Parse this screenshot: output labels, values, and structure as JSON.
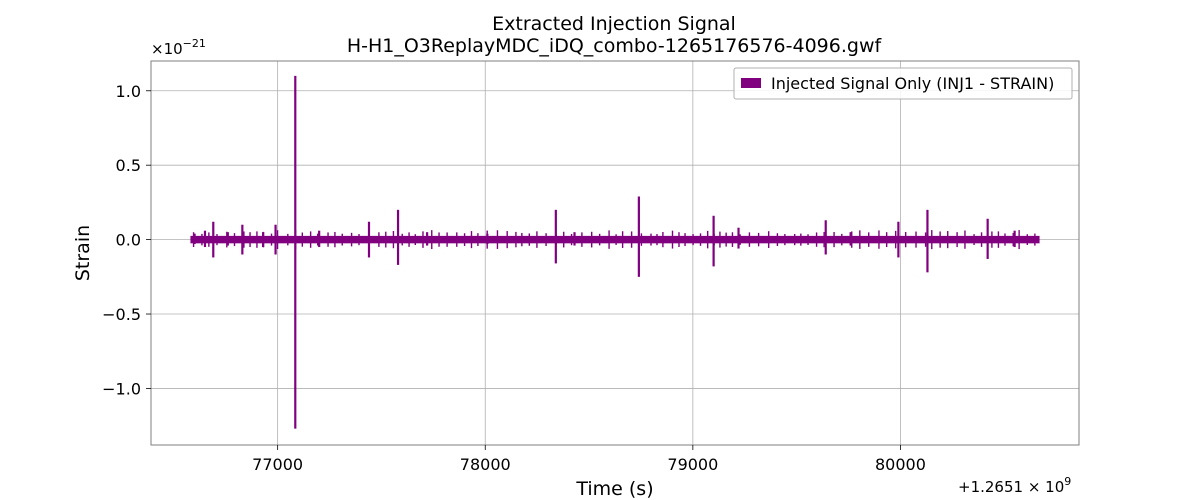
{
  "chart_data": {
    "type": "line",
    "title": "Extracted Injection Signal",
    "subtitle": "H-H1_O3ReplayMDC_iDQ_combo-1265176576-4096.gwf",
    "xlabel": "Time (s)",
    "ylabel": "Strain",
    "y_multiplier_text": "×10",
    "y_multiplier_exp": "−21",
    "x_offset_text": "+1.2651 × 10",
    "x_offset_exp": "9",
    "xlim": [
      76390,
      80860
    ],
    "ylim": [
      -1.38,
      1.2
    ],
    "grid": true,
    "legend_position": "top-right",
    "x_ticks": [
      {
        "value": 77000,
        "label": "77000"
      },
      {
        "value": 78000,
        "label": "78000"
      },
      {
        "value": 79000,
        "label": "79000"
      },
      {
        "value": 80000,
        "label": "80000"
      }
    ],
    "y_ticks": [
      {
        "value": 1.0,
        "label": "1.0"
      },
      {
        "value": 0.5,
        "label": "0.5"
      },
      {
        "value": 0.0,
        "label": "0.0"
      },
      {
        "value": -0.5,
        "label": "−0.5"
      },
      {
        "value": -1.0,
        "label": "−1.0"
      }
    ],
    "series": [
      {
        "name": "Injected Signal Only (INJ1 - STRAIN)",
        "color": "#800080",
        "x_range": [
          76580,
          80670
        ],
        "noise_band": 0.025,
        "spikes": [
          {
            "x": 76600,
            "max": 0.04,
            "min": -0.03
          },
          {
            "x": 76650,
            "max": 0.06,
            "min": -0.05
          },
          {
            "x": 76690,
            "max": 0.12,
            "min": -0.12
          },
          {
            "x": 76760,
            "max": 0.05,
            "min": -0.04
          },
          {
            "x": 76830,
            "max": 0.1,
            "min": -0.1
          },
          {
            "x": 76930,
            "max": 0.05,
            "min": -0.05
          },
          {
            "x": 76990,
            "max": 0.1,
            "min": -0.1
          },
          {
            "x": 77085,
            "max": 1.1,
            "min": -1.27
          },
          {
            "x": 77200,
            "max": 0.06,
            "min": -0.05
          },
          {
            "x": 77440,
            "max": 0.12,
            "min": -0.12
          },
          {
            "x": 77580,
            "max": 0.2,
            "min": -0.17
          },
          {
            "x": 77720,
            "max": 0.05,
            "min": -0.04
          },
          {
            "x": 78010,
            "max": 0.04,
            "min": -0.03
          },
          {
            "x": 78340,
            "max": 0.2,
            "min": -0.16
          },
          {
            "x": 78430,
            "max": 0.05,
            "min": -0.04
          },
          {
            "x": 78740,
            "max": 0.29,
            "min": -0.25
          },
          {
            "x": 79100,
            "max": 0.16,
            "min": -0.18
          },
          {
            "x": 79220,
            "max": 0.08,
            "min": -0.06
          },
          {
            "x": 79640,
            "max": 0.13,
            "min": -0.1
          },
          {
            "x": 79760,
            "max": 0.05,
            "min": -0.04
          },
          {
            "x": 79990,
            "max": 0.12,
            "min": -0.12
          },
          {
            "x": 80130,
            "max": 0.2,
            "min": -0.22
          },
          {
            "x": 80420,
            "max": 0.14,
            "min": -0.13
          },
          {
            "x": 80550,
            "max": 0.06,
            "min": -0.05
          }
        ]
      }
    ]
  }
}
